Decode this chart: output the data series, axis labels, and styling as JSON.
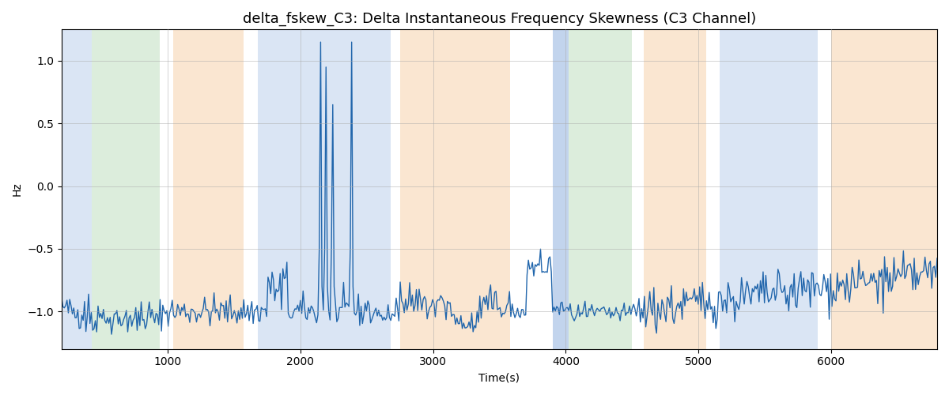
{
  "title": "delta_fskew_C3: Delta Instantaneous Frequency Skewness (C3 Channel)",
  "xlabel": "Time(s)",
  "ylabel": "Hz",
  "xlim": [
    200,
    6800
  ],
  "ylim": [
    -1.3,
    1.25
  ],
  "line_color": "#2166ac",
  "line_width": 1.0,
  "background_color": "#ffffff",
  "grid_color": "#aaaaaa",
  "bands": [
    {
      "xmin": 200,
      "xmax": 430,
      "color": "#aec6e8",
      "alpha": 0.45
    },
    {
      "xmin": 430,
      "xmax": 940,
      "color": "#b2d8b2",
      "alpha": 0.45
    },
    {
      "xmin": 1040,
      "xmax": 1570,
      "color": "#f5c99a",
      "alpha": 0.45
    },
    {
      "xmin": 1680,
      "xmax": 2680,
      "color": "#aec6e8",
      "alpha": 0.45
    },
    {
      "xmin": 2750,
      "xmax": 3580,
      "color": "#f5c99a",
      "alpha": 0.45
    },
    {
      "xmin": 3900,
      "xmax": 4020,
      "color": "#aec6e8",
      "alpha": 0.75
    },
    {
      "xmin": 4020,
      "xmax": 4500,
      "color": "#b2d8b2",
      "alpha": 0.45
    },
    {
      "xmin": 4590,
      "xmax": 5060,
      "color": "#f5c99a",
      "alpha": 0.45
    },
    {
      "xmin": 5160,
      "xmax": 5900,
      "color": "#aec6e8",
      "alpha": 0.45
    },
    {
      "xmin": 6000,
      "xmax": 6800,
      "color": "#f5c99a",
      "alpha": 0.45
    }
  ],
  "seed": 42,
  "title_fontsize": 13,
  "xticks": [
    1000,
    2000,
    3000,
    4000,
    5000,
    6000
  ]
}
